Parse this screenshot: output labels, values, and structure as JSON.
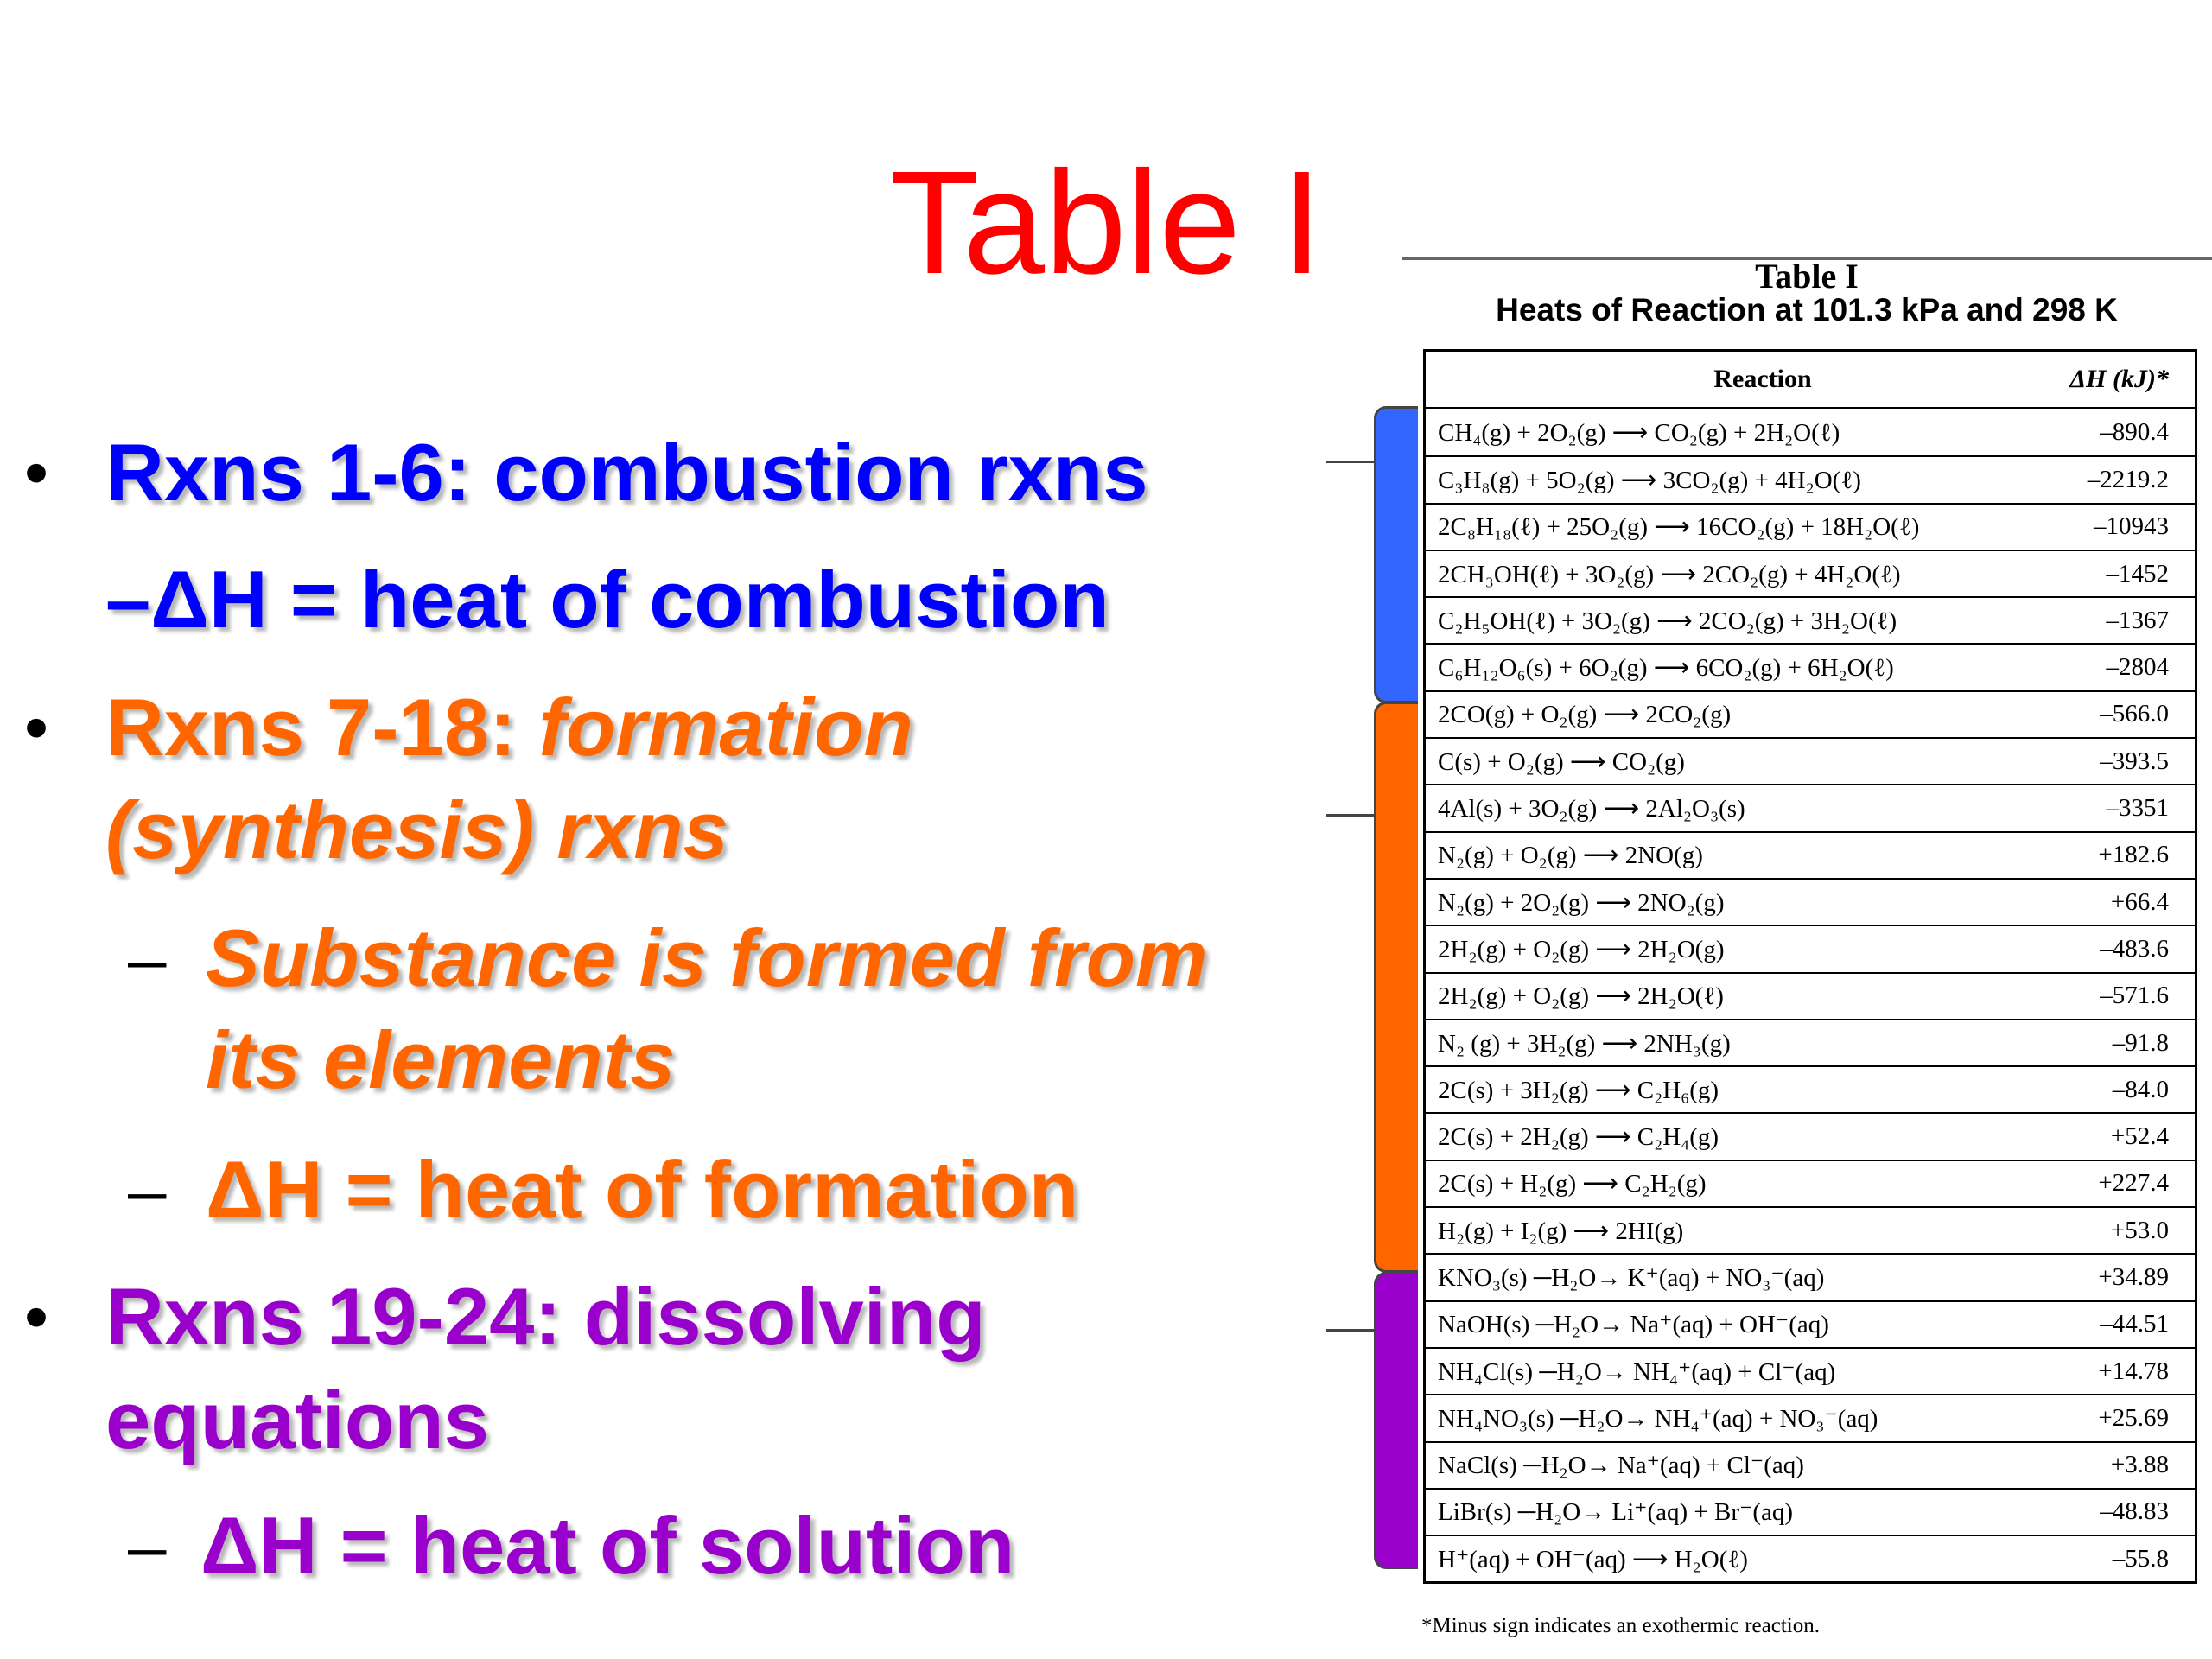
{
  "title": "Table I",
  "bullets": {
    "b1": "Rxns 1-6:  combustion rxns",
    "b1_sub": "–ΔH = heat of combustion",
    "b2_line1": "Rxns 7-18:  ",
    "b2_line1_ital": "formation",
    "b2_line2": "(synthesis) rxns",
    "b2_sub1_line1": "Substance is formed from",
    "b2_sub1_line2": "its elements",
    "b2_sub2": " ΔH = heat of formation",
    "b3_line1": "Rxns 19-24:  dissolving",
    "b3_line2": "equations",
    "b3_sub": "ΔH = heat of solution",
    "bullet_symbol": "•",
    "dash_symbol": "–"
  },
  "table": {
    "caption1": "Table I",
    "caption2": "Heats of Reaction at 101.3 kPa and 298 K",
    "header_reaction": "Reaction",
    "header_dh": "ΔH (kJ)*",
    "rows": [
      {
        "reaction": "CH₄(g) + 2O₂(g) ⟶ CO₂(g) + 2H₂O(ℓ)",
        "dh": "–890.4"
      },
      {
        "reaction": "C₃H₈(g) + 5O₂(g) ⟶ 3CO₂(g) + 4H₂O(ℓ)",
        "dh": "–2219.2"
      },
      {
        "reaction": "2C₈H₁₈(ℓ) + 25O₂(g) ⟶ 16CO₂(g) + 18H₂O(ℓ)",
        "dh": "–10943"
      },
      {
        "reaction": "2CH₃OH(ℓ) + 3O₂(g) ⟶ 2CO₂(g) + 4H₂O(ℓ)",
        "dh": "–1452"
      },
      {
        "reaction": "C₂H₅OH(ℓ) + 3O₂(g) ⟶ 2CO₂(g) + 3H₂O(ℓ)",
        "dh": "–1367"
      },
      {
        "reaction": "C₆H₁₂O₆(s) + 6O₂(g) ⟶ 6CO₂(g) + 6H₂O(ℓ)",
        "dh": "–2804"
      },
      {
        "reaction": "2CO(g) + O₂(g) ⟶ 2CO₂(g)",
        "dh": "–566.0"
      },
      {
        "reaction": "C(s) + O₂(g) ⟶ CO₂(g)",
        "dh": "–393.5"
      },
      {
        "reaction": "4Al(s) + 3O₂(g) ⟶ 2Al₂O₃(s)",
        "dh": "–3351"
      },
      {
        "reaction": "N₂(g) + O₂(g) ⟶ 2NO(g)",
        "dh": "+182.6"
      },
      {
        "reaction": "N₂(g) + 2O₂(g) ⟶ 2NO₂(g)",
        "dh": "+66.4"
      },
      {
        "reaction": "2H₂(g) + O₂(g) ⟶ 2H₂O(g)",
        "dh": "–483.6"
      },
      {
        "reaction": "2H₂(g) + O₂(g) ⟶ 2H₂O(ℓ)",
        "dh": "–571.6"
      },
      {
        "reaction": "N₂ (g) + 3H₂(g) ⟶ 2NH₃(g)",
        "dh": "–91.8"
      },
      {
        "reaction": "2C(s) + 3H₂(g) ⟶ C₂H₆(g)",
        "dh": "–84.0"
      },
      {
        "reaction": "2C(s) + 2H₂(g) ⟶ C₂H₄(g)",
        "dh": "+52.4"
      },
      {
        "reaction": "2C(s) + H₂(g) ⟶ C₂H₂(g)",
        "dh": "+227.4"
      },
      {
        "reaction": "H₂(g) + I₂(g) ⟶ 2HI(g)",
        "dh": "+53.0"
      },
      {
        "reaction": "KNO₃(s) ─H₂O→ K⁺(aq) + NO₃⁻(aq)",
        "dh": "+34.89"
      },
      {
        "reaction": "NaOH(s) ─H₂O→ Na⁺(aq) + OH⁻(aq)",
        "dh": "–44.51"
      },
      {
        "reaction": "NH₄Cl(s) ─H₂O→ NH₄⁺(aq) + Cl⁻(aq)",
        "dh": "+14.78"
      },
      {
        "reaction": "NH₄NO₃(s) ─H₂O→ NH₄⁺(aq) + NO₃⁻(aq)",
        "dh": "+25.69"
      },
      {
        "reaction": "NaCl(s) ─H₂O→ Na⁺(aq) + Cl⁻(aq)",
        "dh": "+3.88"
      },
      {
        "reaction": "LiBr(s) ─H₂O→ Li⁺(aq) + Br⁻(aq)",
        "dh": "–48.83"
      },
      {
        "reaction": "H⁺(aq) + OH⁻(aq) ⟶ H₂O(ℓ)",
        "dh": "–55.8"
      }
    ],
    "footnote": "*Minus sign indicates an exothermic reaction."
  },
  "colors": {
    "title": "#ff0000",
    "combustion": "#0000ff",
    "formation": "#ff6600",
    "dissolving": "#9900cc",
    "brace_blue": "#3366ff",
    "brace_orange": "#ff6600",
    "brace_purple": "#9900cc"
  }
}
